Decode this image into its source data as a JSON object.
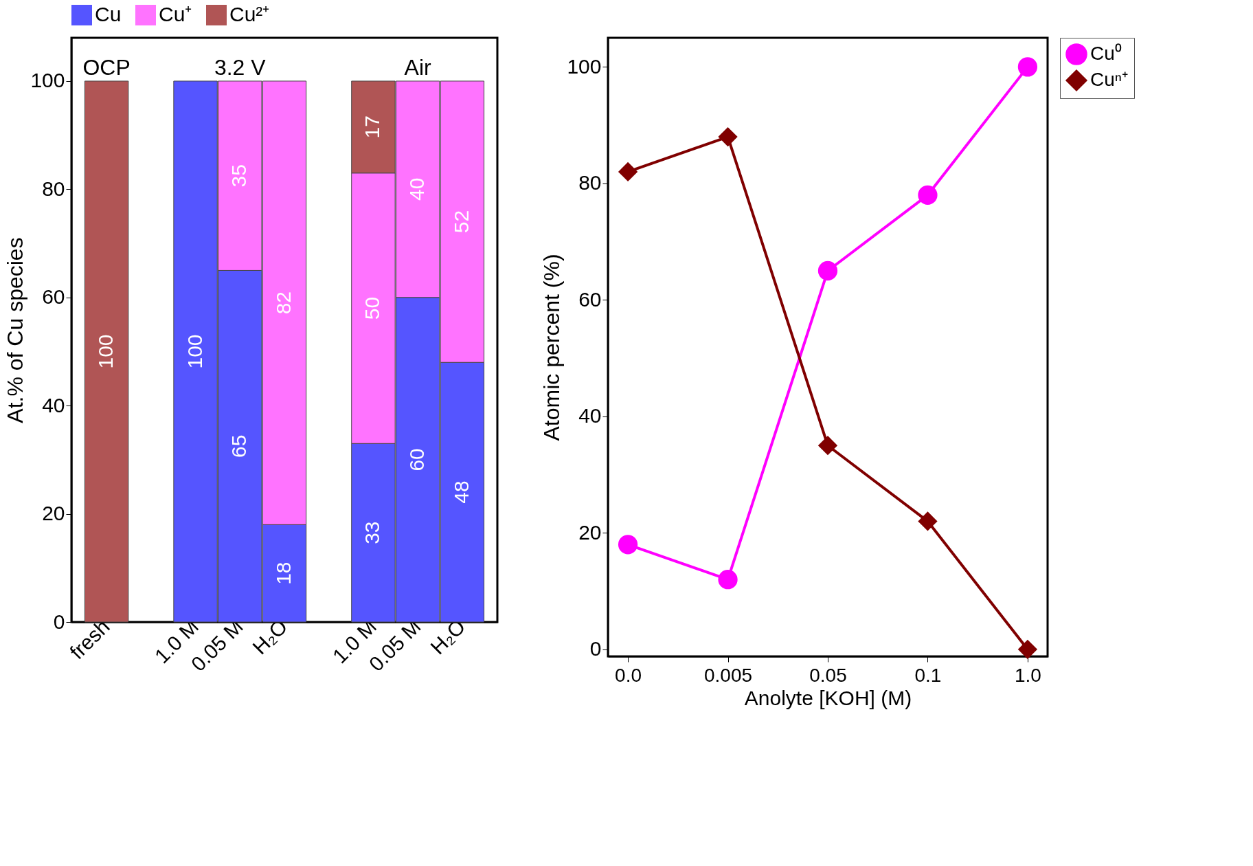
{
  "chart_data": [
    {
      "type": "bar",
      "stacked": true,
      "ylabel": "At.% of Cu species",
      "categories": [
        "fresh",
        null,
        "1.0 M",
        "0.05 M",
        "H₂O",
        null,
        "1.0 M",
        "0.05 M",
        "H₂O"
      ],
      "series": [
        {
          "name": "Cu",
          "color": "#5555ff",
          "values": [
            null,
            null,
            100,
            65,
            18,
            null,
            33,
            60,
            48
          ]
        },
        {
          "name": "Cu⁺",
          "color": "#ff73ff",
          "values": [
            null,
            null,
            null,
            35,
            82,
            null,
            50,
            40,
            52
          ]
        },
        {
          "name": "Cu²⁺",
          "color": "#b05555",
          "values": [
            100,
            null,
            null,
            null,
            null,
            null,
            17,
            null,
            null
          ]
        }
      ],
      "ylim": [
        0,
        108
      ],
      "yticks": [
        0,
        20,
        40,
        60,
        80,
        100
      ],
      "data_labels": true,
      "legend": "top",
      "grid": false,
      "annotations": [
        "OCP",
        "3.2 V",
        "Air"
      ]
    },
    {
      "type": "line",
      "xlabel": "Anolyte [KOH] (M)",
      "ylabel": "Atomic percent (%)",
      "categories": [
        "0.0",
        "0.005",
        "0.05",
        "0.1",
        "1.0"
      ],
      "series": [
        {
          "name": "Cu⁰",
          "color": "#ff00ff",
          "marker": "circle",
          "values": [
            18,
            12,
            65,
            78,
            100
          ]
        },
        {
          "name": "Cuⁿ⁺",
          "color": "#800000",
          "marker": "diamond",
          "values": [
            82,
            88,
            35,
            22,
            0
          ]
        }
      ],
      "ylim": [
        -1.2,
        105
      ],
      "yticks": [
        0,
        20,
        40,
        60,
        80,
        100
      ],
      "legend": "right",
      "grid": false
    }
  ]
}
